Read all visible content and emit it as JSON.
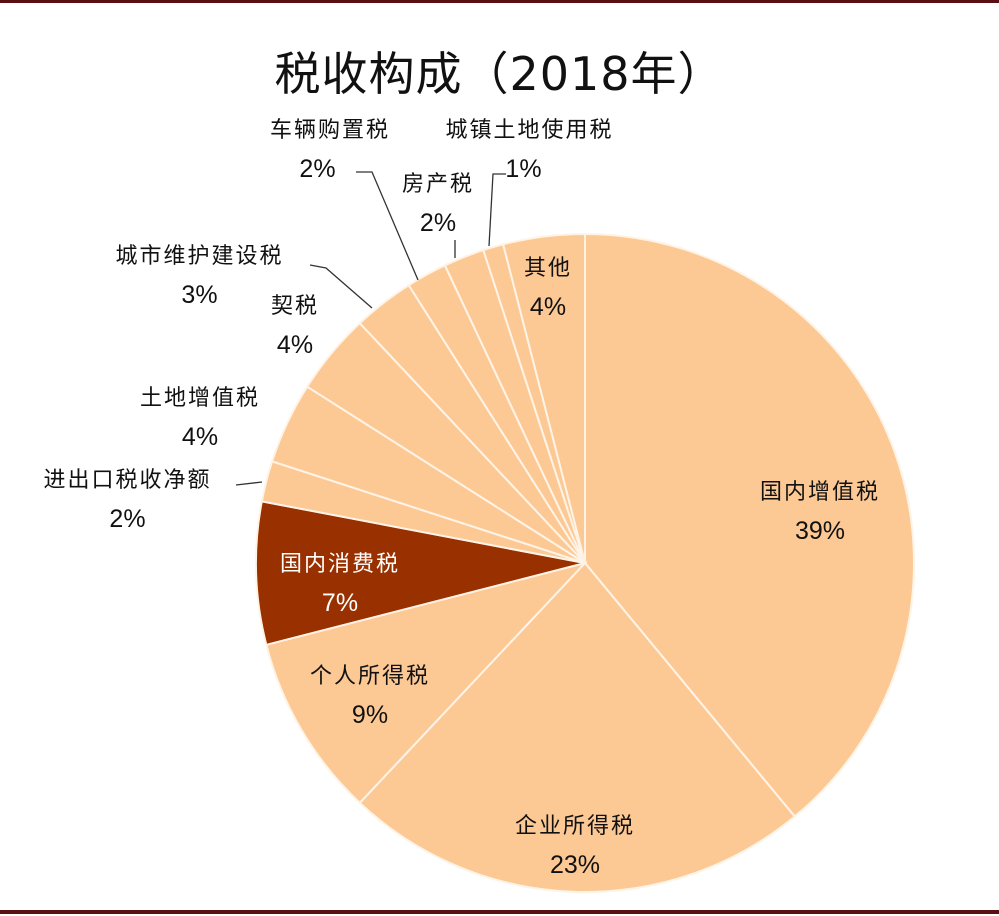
{
  "chart_data": {
    "type": "pie",
    "title": "税收构成（2018年）",
    "start_angle": "12 o'clock",
    "direction": "clockwise",
    "slices": [
      {
        "label": "国内增值税",
        "value": 39,
        "pct": "39%",
        "color": "#FCC995"
      },
      {
        "label": "企业所得税",
        "value": 23,
        "pct": "23%",
        "color": "#FCC995"
      },
      {
        "label": "个人所得税",
        "value": 9,
        "pct": "9%",
        "color": "#FCC995"
      },
      {
        "label": "国内消费税",
        "value": 7,
        "pct": "7%",
        "color": "#983000"
      },
      {
        "label": "进出口税收净额",
        "value": 2,
        "pct": "2%",
        "color": "#FCC995"
      },
      {
        "label": "土地增值税",
        "value": 4,
        "pct": "4%",
        "color": "#FCC995"
      },
      {
        "label": "契税",
        "value": 4,
        "pct": "4%",
        "color": "#FCC995"
      },
      {
        "label": "城市维护建设税",
        "value": 3,
        "pct": "3%",
        "color": "#FCC995"
      },
      {
        "label": "车辆购置税",
        "value": 2,
        "pct": "2%",
        "color": "#FCC995"
      },
      {
        "label": "房产税",
        "value": 2,
        "pct": "2%",
        "color": "#FCC995"
      },
      {
        "label": "城镇土地使用税",
        "value": 1,
        "pct": "1%",
        "color": "#FCC995"
      },
      {
        "label": "其他",
        "value": 4,
        "pct": "4%",
        "color": "#FCC995"
      }
    ],
    "legend": "none (data labels)"
  },
  "colors": {
    "slice_default": "#FCC995",
    "slice_highlight": "#983000",
    "separator": "#FFF3E6",
    "rule": "#5A0F12"
  }
}
